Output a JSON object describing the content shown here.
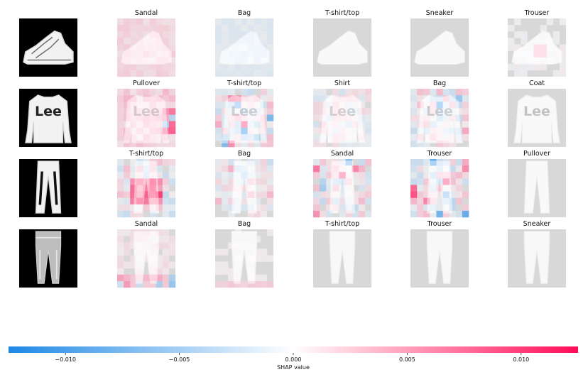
{
  "chart_data": {
    "type": "heatmap",
    "description_free": true,
    "rows": [
      {
        "input_item": "sneaker",
        "panels": [
          {
            "title": "Sandal",
            "intensity": 0.25,
            "pattern": "pink-wash"
          },
          {
            "title": "Bag",
            "intensity": 0.18,
            "pattern": "blue-wash"
          },
          {
            "title": "T-shirt/top",
            "intensity": 0.0,
            "pattern": "none"
          },
          {
            "title": "Sneaker",
            "intensity": 0.0,
            "pattern": "none"
          },
          {
            "title": "Trouser",
            "intensity": 0.12,
            "pattern": "center-pink"
          }
        ]
      },
      {
        "input_item": "pullover",
        "panels": [
          {
            "title": "Pullover",
            "intensity": 0.8,
            "pattern": "pink-right"
          },
          {
            "title": "T-shirt/top",
            "intensity": 0.8,
            "pattern": "mixed"
          },
          {
            "title": "Shirt",
            "intensity": 0.35,
            "pattern": "mixed-light"
          },
          {
            "title": "Bag",
            "intensity": 0.75,
            "pattern": "mixed"
          },
          {
            "title": "Coat",
            "intensity": 0.0,
            "pattern": "none"
          }
        ]
      },
      {
        "input_item": "trouser",
        "panels": [
          {
            "title": "T-shirt/top",
            "intensity": 0.9,
            "pattern": "pink-strong"
          },
          {
            "title": "Bag",
            "intensity": 0.5,
            "pattern": "mixed"
          },
          {
            "title": "Sandal",
            "intensity": 0.8,
            "pattern": "mixed"
          },
          {
            "title": "Trouser",
            "intensity": 0.9,
            "pattern": "mixed"
          },
          {
            "title": "Pullover",
            "intensity": 0.0,
            "pattern": "none"
          }
        ]
      },
      {
        "input_item": "trouser-light",
        "panels": [
          {
            "title": "Sandal",
            "intensity": 0.55,
            "pattern": "pink-bottom"
          },
          {
            "title": "Bag",
            "intensity": 0.3,
            "pattern": "pink-bottom-light"
          },
          {
            "title": "T-shirt/top",
            "intensity": 0.0,
            "pattern": "none"
          },
          {
            "title": "Trouser",
            "intensity": 0.0,
            "pattern": "none"
          },
          {
            "title": "Sneaker",
            "intensity": 0.0,
            "pattern": "none"
          }
        ]
      }
    ],
    "colorbar": {
      "label": "SHAP value",
      "min": -0.0125,
      "max": 0.0125,
      "ticks": [
        -0.01,
        -0.005,
        0.0,
        0.005,
        0.01
      ],
      "tick_labels": [
        "−0.010",
        "−0.005",
        "0.000",
        "0.005",
        "0.010"
      ],
      "colors": {
        "negative": "#1e88e5",
        "zero": "#ffffff",
        "positive": "#ff0d57"
      }
    }
  }
}
